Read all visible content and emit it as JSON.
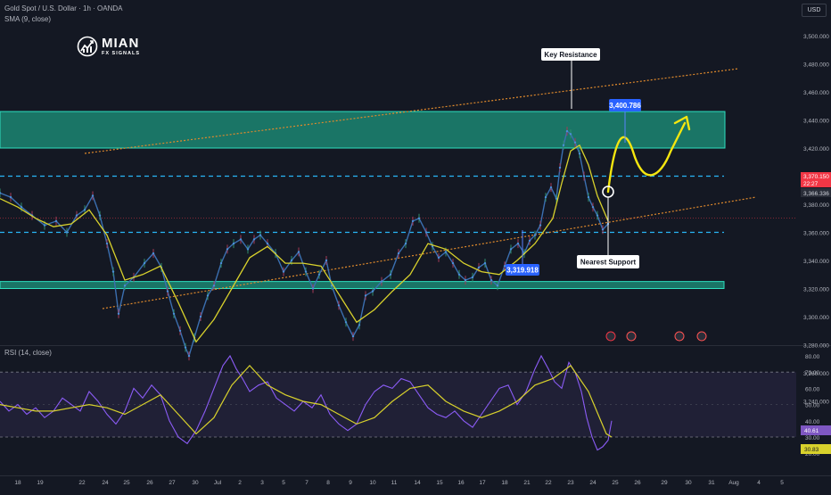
{
  "header": {
    "instrument": "Gold Spot / U.S. Dollar · 1h · OANDA",
    "indicator": "SMA (9, close)",
    "currency": "USD"
  },
  "logo": {
    "name": "MIAN",
    "subtitle": "FX SIGNALS"
  },
  "rsi_panel": {
    "label": "RSI (14, close)"
  },
  "colors": {
    "background": "#141823",
    "zone_fill": "#1c8f7a",
    "zone_border": "#2ee0c0",
    "sma_line": "#d8d12c",
    "rsi_line": "#8b5cf6",
    "projection": "#f5e60f",
    "level_line": "#29b6f6",
    "trend_line": "#e08a2c",
    "callout_blue": "#2962ff",
    "price_red": "#f23645"
  },
  "chart_data": [
    {
      "type": "line",
      "title": "Gold Spot / U.S. Dollar · 1h · OANDA",
      "y_ticks": [
        "3,500.000",
        "3,480.000",
        "3,460.000",
        "3,440.000",
        "3,420.000",
        "3,400.000",
        "3,380.000",
        "3,360.000",
        "3,340.000",
        "3,320.000",
        "3,300.000",
        "3,280.000",
        "3,260.000",
        "3,240.000",
        "3,220.000"
      ],
      "x_ticks": [
        "18",
        "19",
        "22",
        "24",
        "25",
        "26",
        "27",
        "30",
        "Jul",
        "2",
        "3",
        "5",
        "7",
        "8",
        "9",
        "10",
        "11",
        "14",
        "15",
        "16",
        "17",
        "18",
        "21",
        "22",
        "23",
        "24",
        "25",
        "26",
        "29",
        "30",
        "31",
        "Aug",
        "4",
        "5"
      ],
      "ylim": [
        3220,
        3510
      ],
      "series": [
        {
          "name": "Gold Spot / U.S. Dollar",
          "x": [
            0,
            12,
            24,
            36,
            50,
            63,
            75,
            86,
            95,
            104,
            112,
            120,
            127,
            133,
            140,
            150,
            162,
            172,
            181,
            188,
            195,
            202,
            208,
            212,
            218,
            225,
            233,
            240,
            248,
            255,
            262,
            270,
            278,
            285,
            292,
            300,
            309,
            318,
            327,
            335,
            343,
            351,
            358,
            366,
            372,
            380,
            388,
            396,
            403,
            410,
            418,
            428,
            438,
            447,
            455,
            463,
            470,
            478,
            485,
            492,
            500,
            508,
            515,
            522,
            530,
            537,
            544,
            551,
            558,
            566,
            573,
            581,
            588,
            594,
            600,
            606,
            612,
            618,
            624,
            628,
            632,
            636,
            640,
            645,
            650,
            655,
            660,
            665,
            670,
            676,
            682
          ],
          "y": [
            3388,
            3385,
            3378,
            3372,
            3365,
            3368,
            3360,
            3372,
            3376,
            3386,
            3372,
            3352,
            3332,
            3302,
            3322,
            3328,
            3338,
            3345,
            3335,
            3318,
            3302,
            3290,
            3278,
            3272,
            3285,
            3300,
            3315,
            3322,
            3338,
            3348,
            3352,
            3355,
            3348,
            3355,
            3358,
            3352,
            3345,
            3332,
            3340,
            3346,
            3332,
            3320,
            3330,
            3340,
            3322,
            3308,
            3296,
            3286,
            3294,
            3315,
            3318,
            3325,
            3330,
            3345,
            3352,
            3368,
            3370,
            3360,
            3350,
            3342,
            3346,
            3338,
            3330,
            3326,
            3328,
            3335,
            3338,
            3326,
            3322,
            3336,
            3348,
            3352,
            3345,
            3354,
            3358,
            3365,
            3385,
            3392,
            3384,
            3406,
            3422,
            3432,
            3430,
            3424,
            3416,
            3400,
            3385,
            3378,
            3372,
            3362,
            3366
          ]
        },
        {
          "name": "SMA (9, close)",
          "x": [
            0,
            20,
            40,
            60,
            80,
            100,
            120,
            140,
            160,
            180,
            200,
            220,
            240,
            260,
            280,
            300,
            320,
            340,
            360,
            380,
            400,
            420,
            440,
            460,
            480,
            500,
            520,
            540,
            560,
            580,
            600,
            620,
            630,
            640,
            650,
            660,
            670,
            682
          ],
          "y": [
            3384,
            3378,
            3370,
            3364,
            3366,
            3376,
            3358,
            3326,
            3330,
            3336,
            3310,
            3282,
            3298,
            3320,
            3342,
            3350,
            3338,
            3338,
            3336,
            3316,
            3296,
            3305,
            3318,
            3330,
            3352,
            3348,
            3338,
            3332,
            3330,
            3340,
            3352,
            3370,
            3395,
            3418,
            3422,
            3408,
            3386,
            3368
          ]
        }
      ],
      "annotations": [
        "Key Resistance",
        "Nearest Support",
        "3,400.786",
        "3,319.918",
        "3,370.150",
        "22:27",
        "3,366.336"
      ]
    },
    {
      "type": "line",
      "title": "RSI (14, close)",
      "y_ticks": [
        "80.00",
        "70.00",
        "60.00",
        "50.00",
        "40.00",
        "30.00",
        "20.00"
      ],
      "ylim": [
        16,
        86
      ],
      "series": [
        {
          "name": "RSI (14, close)",
          "x": [
            0,
            10,
            20,
            30,
            40,
            50,
            60,
            70,
            80,
            90,
            100,
            110,
            120,
            130,
            140,
            150,
            160,
            170,
            180,
            190,
            200,
            210,
            220,
            230,
            240,
            250,
            258,
            265,
            272,
            280,
            290,
            300,
            310,
            320,
            330,
            340,
            350,
            360,
            370,
            380,
            390,
            400,
            410,
            420,
            430,
            440,
            450,
            460,
            470,
            480,
            490,
            500,
            510,
            520,
            530,
            540,
            550,
            560,
            570,
            580,
            590,
            600,
            607,
            615,
            622,
            630,
            638,
            645,
            652,
            658,
            664,
            670,
            676,
            682,
            686
          ],
          "y": [
            52,
            46,
            50,
            44,
            48,
            42,
            46,
            54,
            50,
            46,
            58,
            52,
            44,
            38,
            46,
            60,
            54,
            62,
            56,
            40,
            30,
            26,
            34,
            46,
            60,
            74,
            80,
            72,
            66,
            58,
            62,
            64,
            54,
            50,
            46,
            52,
            48,
            56,
            44,
            38,
            34,
            38,
            50,
            58,
            62,
            60,
            66,
            64,
            56,
            48,
            44,
            42,
            46,
            40,
            36,
            44,
            52,
            60,
            62,
            50,
            58,
            72,
            80,
            72,
            64,
            60,
            76,
            70,
            58,
            42,
            30,
            22,
            24,
            28,
            40
          ]
        },
        {
          "name": "RSI-based MA",
          "x": [
            0,
            20,
            40,
            60,
            80,
            100,
            120,
            140,
            160,
            180,
            200,
            220,
            240,
            260,
            280,
            300,
            320,
            340,
            360,
            380,
            400,
            420,
            440,
            460,
            480,
            500,
            520,
            540,
            560,
            580,
            600,
            620,
            640,
            660,
            680,
            686
          ],
          "y": [
            50,
            48,
            46,
            46,
            48,
            50,
            48,
            44,
            50,
            56,
            44,
            32,
            42,
            62,
            74,
            62,
            56,
            52,
            50,
            44,
            38,
            42,
            52,
            60,
            62,
            52,
            46,
            42,
            46,
            52,
            62,
            66,
            74,
            58,
            32,
            30
          ]
        }
      ],
      "annotations": [
        "40.61",
        "30.83"
      ]
    }
  ]
}
